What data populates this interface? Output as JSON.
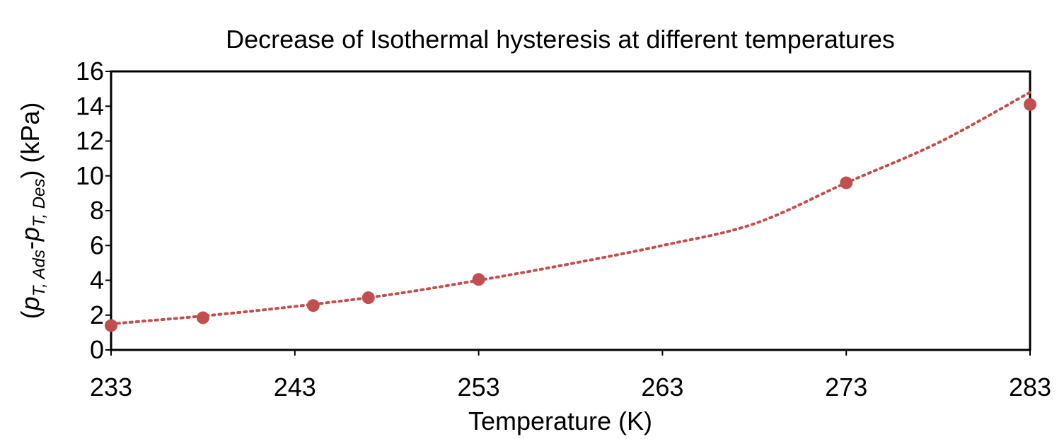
{
  "chart_data": {
    "type": "scatter",
    "title": "Decrease of Isothermal hysteresis at different temperatures",
    "xlabel": "Temperature (K)",
    "ylabel": {
      "open": "(",
      "p1": "p",
      "sub1": "T, Ads",
      "dash": "-",
      "p2": "p",
      "sub2": "T, Des",
      "close": ")",
      "unit": " (kPa)"
    },
    "xlim": [
      233,
      283
    ],
    "ylim": [
      0,
      16
    ],
    "xticks": [
      "233",
      "243",
      "253",
      "263",
      "273",
      "283"
    ],
    "yticks": [
      "0",
      "2",
      "4",
      "6",
      "8",
      "10",
      "12",
      "14",
      "16"
    ],
    "grid": false,
    "series": [
      {
        "x": [
          233,
          238,
          244,
          247,
          253,
          273,
          283
        ],
        "y": [
          1.4,
          1.85,
          2.55,
          3.0,
          4.05,
          9.6,
          14.1
        ]
      }
    ],
    "trendline": {
      "style": "dotted",
      "kind": "polynomial",
      "x": [
        233,
        238,
        243,
        248,
        253,
        258,
        263,
        268,
        273,
        278,
        283
      ],
      "y": [
        1.5,
        1.95,
        2.5,
        3.15,
        4.0,
        4.95,
        6.0,
        7.25,
        9.6,
        11.9,
        14.8
      ]
    },
    "colors": {
      "marker": "#c0504d",
      "trendline": "#c0504d",
      "axis": "#000000"
    }
  }
}
